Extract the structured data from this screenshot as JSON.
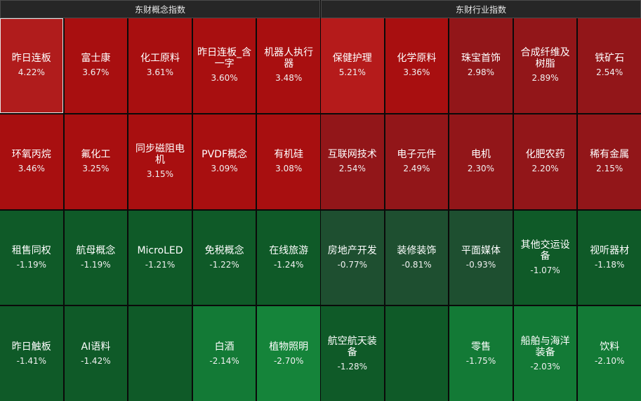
{
  "panels": [
    {
      "title": "东财概念指数",
      "tiles": [
        {
          "name": "昨日连板",
          "pct": "4.22%",
          "color": "#b01c1c",
          "selected": true
        },
        {
          "name": "富士康",
          "pct": "3.67%",
          "color": "#a80f10"
        },
        {
          "name": "化工原料",
          "pct": "3.61%",
          "color": "#a80f10"
        },
        {
          "name": "昨日连板_含一字",
          "pct": "3.60%",
          "color": "#a80f10"
        },
        {
          "name": "机器人执行器",
          "pct": "3.48%",
          "color": "#a80f10"
        },
        {
          "name": "环氧丙烷",
          "pct": "3.46%",
          "color": "#a80f10"
        },
        {
          "name": "氟化工",
          "pct": "3.25%",
          "color": "#a80f10"
        },
        {
          "name": "同步磁阻电机",
          "pct": "3.15%",
          "color": "#a80f10"
        },
        {
          "name": "PVDF概念",
          "pct": "3.09%",
          "color": "#a80f10"
        },
        {
          "name": "有机硅",
          "pct": "3.08%",
          "color": "#a80f10"
        },
        {
          "name": "租售同权",
          "pct": "-1.19%",
          "color": "#0f5a28"
        },
        {
          "name": "航母概念",
          "pct": "-1.19%",
          "color": "#0f5a28"
        },
        {
          "name": "MicroLED",
          "pct": "-1.21%",
          "color": "#0f5a28"
        },
        {
          "name": "免税概念",
          "pct": "-1.22%",
          "color": "#0f5a28"
        },
        {
          "name": "在线旅游",
          "pct": "-1.24%",
          "color": "#0f5a28"
        },
        {
          "name": "昨日触板",
          "pct": "-1.41%",
          "color": "#0f5a28"
        },
        {
          "name": "AI语料",
          "pct": "-1.42%",
          "color": "#0f5a28"
        },
        {
          "name": "",
          "pct": "",
          "color": "#0f5a28"
        },
        {
          "name": "白酒",
          "pct": "-2.14%",
          "color": "#137a36"
        },
        {
          "name": "植物照明",
          "pct": "-2.70%",
          "color": "#15843a"
        }
      ]
    },
    {
      "title": "东财行业指数",
      "tiles": [
        {
          "name": "保健护理",
          "pct": "5.21%",
          "color": "#b51b1b"
        },
        {
          "name": "化学原料",
          "pct": "3.36%",
          "color": "#a80f10"
        },
        {
          "name": "珠宝首饰",
          "pct": "2.98%",
          "color": "#921619"
        },
        {
          "name": "合成纤维及树脂",
          "pct": "2.89%",
          "color": "#921619"
        },
        {
          "name": "铁矿石",
          "pct": "2.54%",
          "color": "#921619"
        },
        {
          "name": "互联网技术",
          "pct": "2.54%",
          "color": "#921619"
        },
        {
          "name": "电子元件",
          "pct": "2.49%",
          "color": "#921619"
        },
        {
          "name": "电机",
          "pct": "2.30%",
          "color": "#921619"
        },
        {
          "name": "化肥农药",
          "pct": "2.20%",
          "color": "#921619"
        },
        {
          "name": "稀有金属",
          "pct": "2.15%",
          "color": "#921619"
        },
        {
          "name": "房地产开发",
          "pct": "-0.77%",
          "color": "#1e4f30"
        },
        {
          "name": "装修装饰",
          "pct": "-0.81%",
          "color": "#1e4f30"
        },
        {
          "name": "平面媒体",
          "pct": "-0.93%",
          "color": "#1e4f30"
        },
        {
          "name": "其他交运设备",
          "pct": "-1.07%",
          "color": "#0f5a28"
        },
        {
          "name": "视听器材",
          "pct": "-1.18%",
          "color": "#0f5a28"
        },
        {
          "name": "航空航天装备",
          "pct": "-1.28%",
          "color": "#0f5a28"
        },
        {
          "name": "",
          "pct": "",
          "color": "#0f5a28"
        },
        {
          "name": "零售",
          "pct": "-1.75%",
          "color": "#137a36"
        },
        {
          "name": "船舶与海洋装备",
          "pct": "-2.03%",
          "color": "#137a36"
        },
        {
          "name": "饮料",
          "pct": "-2.10%",
          "color": "#137a36"
        }
      ]
    }
  ]
}
